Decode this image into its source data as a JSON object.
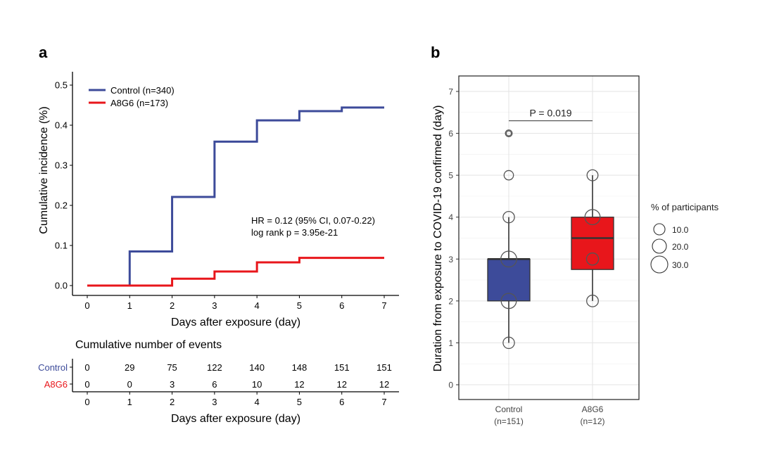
{
  "panel_a": {
    "label": "a",
    "ylabel": "Cumulative incidence (%)",
    "xlabel": "Days after exposure (day)",
    "annotation_hr": "HR = 0.12 (95% CI, 0.07-0.22)",
    "annotation_p": "log rank p = 3.95e-21",
    "table_title": "Cumulative number of events",
    "table_xlabel": "Days after exposure (day)",
    "table_rows": [
      {
        "label": "Control",
        "color": "#3d4b9a",
        "values": [
          "0",
          "29",
          "75",
          "122",
          "140",
          "148",
          "151",
          "151"
        ]
      },
      {
        "label": "A8G6",
        "color": "#e8161b",
        "values": [
          "0",
          "0",
          "3",
          "6",
          "10",
          "12",
          "12",
          "12"
        ]
      }
    ]
  },
  "panel_b": {
    "label": "b",
    "ylabel": "Duration from exposure to COVID-19 confirmed (day)",
    "bracket_label": "P = 0.019",
    "group_labels": [
      {
        "name": "Control",
        "n": "(n=151)"
      },
      {
        "name": "A8G6",
        "n": "(n=12)"
      }
    ],
    "legend_title": "% of participants",
    "legend_items": [
      "10.0",
      "20.0",
      "30.0"
    ]
  },
  "chart_data": [
    {
      "type": "line",
      "title": "",
      "xlabel": "Days after exposure (day)",
      "ylabel": "Cumulative incidence (%)",
      "xlim": [
        0,
        7
      ],
      "ylim": [
        0,
        0.5
      ],
      "xticks": [
        0,
        1,
        2,
        3,
        4,
        5,
        6,
        7
      ],
      "yticks": [
        0.0,
        0.1,
        0.2,
        0.3,
        0.4,
        0.5
      ],
      "ytick_labels": [
        "0.0",
        "0.1",
        "0.2",
        "0.3",
        "0.4",
        "0.5"
      ],
      "step": true,
      "grid": false,
      "legend_position": "top-left",
      "series": [
        {
          "name": "Control (n=340)",
          "color": "#3d4b9a",
          "x": [
            0,
            1,
            2,
            3,
            4,
            5,
            6,
            7
          ],
          "y": [
            0,
            0.085,
            0.221,
            0.359,
            0.412,
            0.435,
            0.444,
            0.444
          ]
        },
        {
          "name": "A8G6 (n=173)",
          "color": "#e8161b",
          "x": [
            0,
            1,
            2,
            3,
            4,
            5,
            6,
            7
          ],
          "y": [
            0,
            0,
            0.017,
            0.035,
            0.058,
            0.069,
            0.069,
            0.069
          ]
        }
      ]
    },
    {
      "type": "box",
      "title": "",
      "ylabel": "Duration from exposure to COVID-19 confirmed (day)",
      "ylim": [
        -0.35,
        7.35
      ],
      "yticks": [
        0,
        1,
        2,
        3,
        4,
        5,
        6,
        7
      ],
      "grid": true,
      "categories": [
        "Control\n(n=151)",
        "A8G6\n(n=12)"
      ],
      "boxes": [
        {
          "name": "Control",
          "color": "#3d4b9a",
          "q1": 2,
          "median": 3,
          "q3": 3,
          "whisker_low": 1,
          "whisker_high": 4,
          "outliers": [
            6
          ]
        },
        {
          "name": "A8G6",
          "color": "#e8161b",
          "q1": 2.75,
          "median": 3.5,
          "q3": 4,
          "whisker_low": 2,
          "whisker_high": 5,
          "outliers": []
        }
      ],
      "points": [
        {
          "group": "Control",
          "y": 1,
          "pct": 15
        },
        {
          "group": "Control",
          "y": 2,
          "pct": 25
        },
        {
          "group": "Control",
          "y": 3,
          "pct": 27
        },
        {
          "group": "Control",
          "y": 4,
          "pct": 15
        },
        {
          "group": "Control",
          "y": 5,
          "pct": 10
        },
        {
          "group": "Control",
          "y": 6,
          "pct": 3
        },
        {
          "group": "A8G6",
          "y": 2,
          "pct": 16
        },
        {
          "group": "A8G6",
          "y": 3,
          "pct": 17
        },
        {
          "group": "A8G6",
          "y": 4,
          "pct": 25
        },
        {
          "group": "A8G6",
          "y": 5,
          "pct": 14
        }
      ],
      "bracket": {
        "from": "Control",
        "to": "A8G6",
        "y": 6.3,
        "label": "P = 0.019"
      },
      "size_legend": {
        "title": "% of participants",
        "values": [
          10,
          20,
          30
        ]
      }
    }
  ]
}
